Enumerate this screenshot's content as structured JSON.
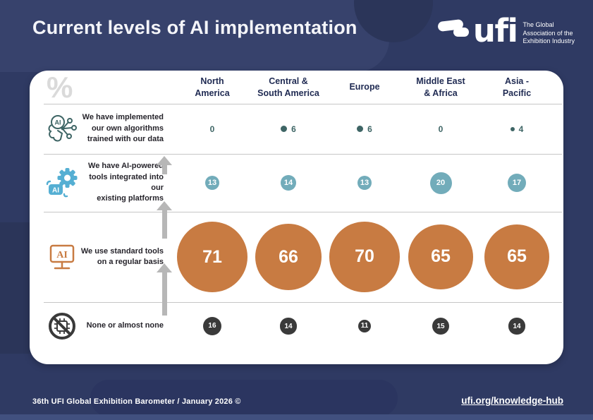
{
  "title": "Current levels of AI implementation",
  "unit_symbol": "%",
  "logo": {
    "wordmark": "ufi",
    "tagline": "The Global\nAssociation of the\nExhibition Industry"
  },
  "columns_display": [
    "North\nAmerica",
    "Central &\nSouth America",
    "Europe",
    "Middle East\n& Africa",
    "Asia -\nPacific"
  ],
  "row_labels": [
    "We have implemented\nour own algorithms\ntrained with our data",
    "We have AI-powered\ntools integrated into our\nexisting platforms",
    "We use standard tools\non a regular basis",
    "None or almost none"
  ],
  "icons": [
    "ai-brain-icon",
    "ai-gear-icon",
    "ai-monitor-icon",
    "no-ai-icon"
  ],
  "footer": {
    "source": "36th UFI Global Exhibition Barometer / January 2026 ©",
    "link": "ufi.org/knowledge-hub"
  },
  "colors": {
    "background": "#2F3A63",
    "card": "#FFFFFF",
    "orange": "#C87B42",
    "teal_light": "#72ACBA",
    "teal_dark": "#3E6565",
    "dark_circle": "#3A3A3A",
    "header_navy": "#1F2A52",
    "arrow_gray": "#B7B7B7",
    "bottom_bar": "#41507F"
  },
  "chart_data": {
    "type": "table",
    "title": "Current levels of AI implementation",
    "unit": "%",
    "categories": [
      "North America",
      "Central & South America",
      "Europe",
      "Middle East & Africa",
      "Asia - Pacific"
    ],
    "series": [
      {
        "name": "We have implemented our own algorithms trained with our data",
        "values": [
          0,
          6,
          6,
          0,
          4
        ]
      },
      {
        "name": "We have AI-powered tools integrated into our existing platforms",
        "values": [
          13,
          14,
          13,
          20,
          17
        ]
      },
      {
        "name": "We use standard tools on a regular basis",
        "values": [
          71,
          66,
          70,
          65,
          65
        ]
      },
      {
        "name": "None or almost none",
        "values": [
          16,
          14,
          11,
          15,
          14
        ]
      }
    ],
    "layout": "rows are implementation levels (bubble size proportional to value), columns are world regions"
  }
}
